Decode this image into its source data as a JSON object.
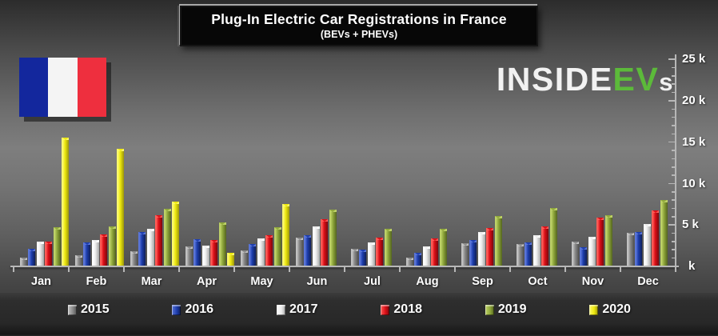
{
  "header": {
    "title": "Plug-In Electric Car Registrations in France",
    "subtitle": "(BEVs + PHEVs)"
  },
  "logo": {
    "part1": "INSIDE",
    "part2": "EV",
    "part3": "s",
    "accent_color": "#5cba3a"
  },
  "flag": {
    "country": "France",
    "colors": [
      "#13279d",
      "#f4f4f4",
      "#ee2f3e"
    ]
  },
  "chart_data": {
    "type": "bar",
    "title": "Plug-In Electric Car Registrations in France",
    "subtitle": "(BEVs + PHEVs)",
    "categories": [
      "Jan",
      "Feb",
      "Mar",
      "Apr",
      "May",
      "Jun",
      "Jul",
      "Aug",
      "Sep",
      "Oct",
      "Nov",
      "Dec"
    ],
    "series": [
      {
        "name": "2015",
        "color": "#8a8a8a",
        "light": "#c2c2c2",
        "dark": "#515151",
        "values": [
          1100,
          1400,
          1800,
          2400,
          1900,
          3500,
          2100,
          1100,
          2800,
          2700,
          3000,
          4100
        ]
      },
      {
        "name": "2016",
        "color": "#1e3eae",
        "light": "#5b76d8",
        "dark": "#0f1f58",
        "values": [
          2100,
          2900,
          4200,
          3300,
          2700,
          3800,
          2000,
          1600,
          3200,
          2900,
          2300,
          4200
        ]
      },
      {
        "name": "2017",
        "color": "#ececec",
        "light": "#ffffff",
        "dark": "#a6a6a6",
        "values": [
          3000,
          3200,
          4500,
          2500,
          3400,
          4800,
          2900,
          2400,
          4200,
          3800,
          3600,
          5100
        ]
      },
      {
        "name": "2018",
        "color": "#dc0f18",
        "light": "#ff5d57",
        "dark": "#7c070c",
        "values": [
          3000,
          3900,
          6200,
          3200,
          3800,
          5700,
          3500,
          3400,
          4600,
          4800,
          5900,
          6800
        ]
      },
      {
        "name": "2019",
        "color": "#90a83c",
        "light": "#bed268",
        "dark": "#53641e",
        "values": [
          4700,
          4800,
          7000,
          5300,
          4700,
          6900,
          4500,
          4500,
          6100,
          7100,
          6200,
          8000
        ]
      },
      {
        "name": "2020",
        "color": "#eee90f",
        "light": "#fcf96e",
        "dark": "#9b960a",
        "values": [
          15600,
          14200,
          7800,
          1600,
          7500,
          null,
          null,
          null,
          null,
          null,
          null,
          null
        ]
      }
    ],
    "y_axis": {
      "side": "right",
      "min": 0,
      "max": 25000,
      "major_step": 5000,
      "minor_step": 1000,
      "ticks": [
        {
          "value": 25000,
          "label": "25 k"
        },
        {
          "value": 20000,
          "label": "20 k"
        },
        {
          "value": 15000,
          "label": "15 k"
        },
        {
          "value": 10000,
          "label": "10 k"
        },
        {
          "value": 5000,
          "label": "5 k"
        },
        {
          "value": 0,
          "label": "k"
        }
      ]
    },
    "legend_position": "bottom",
    "gridlines": false
  }
}
